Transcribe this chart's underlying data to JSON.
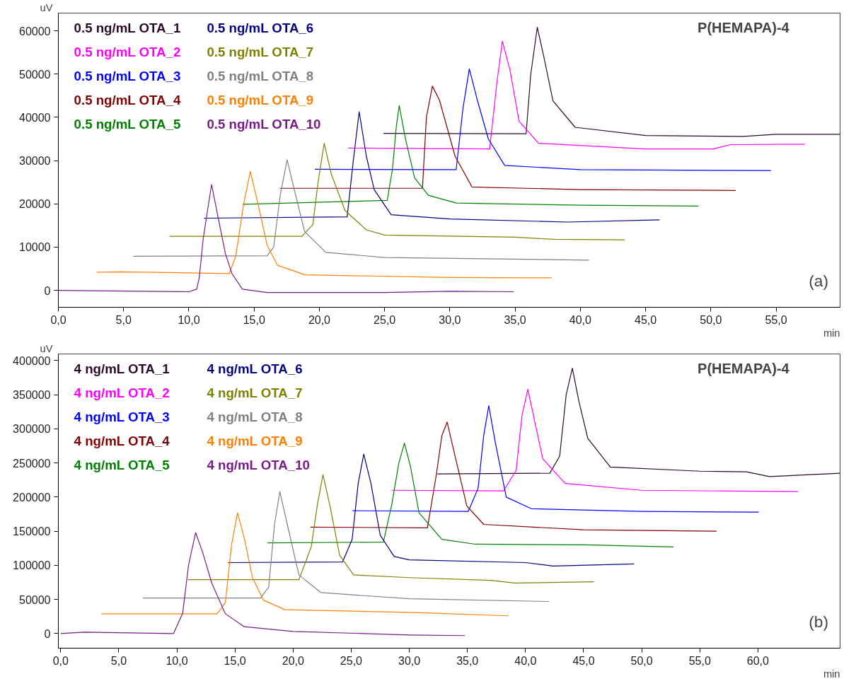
{
  "chart_data": [
    {
      "type": "line",
      "title": "P(HEMAPA)-4",
      "xlabel": "min",
      "ylabel": "uV",
      "annotations": [
        "(a)"
      ],
      "legend": "top left",
      "grid": false,
      "xlim": [
        0,
        59.9
      ],
      "ylim": [
        -3900,
        64100
      ],
      "xticks": [
        {
          "value": 0,
          "label": "0,0"
        },
        {
          "value": 5,
          "label": "5,0"
        },
        {
          "value": 10,
          "label": "10,0"
        },
        {
          "value": 15,
          "label": "15,0"
        },
        {
          "value": 20,
          "label": "20,0"
        },
        {
          "value": 25,
          "label": "25,0"
        },
        {
          "value": 30,
          "label": "30,0"
        },
        {
          "value": 35,
          "label": "35,0"
        },
        {
          "value": 40,
          "label": "40,0"
        },
        {
          "value": 45,
          "label": "45,0"
        },
        {
          "value": 50,
          "label": "50,0"
        },
        {
          "value": 55,
          "label": "55,0"
        }
      ],
      "yticks": [
        0,
        10000,
        20000,
        30000,
        40000,
        50000,
        60000
      ],
      "series": [
        {
          "name": "0.5 ng/mL OTA_1",
          "color": "#2a0a2a",
          "x": [
            24.91,
            35.84,
            36.2,
            36.7,
            37.2,
            37.9,
            39.6,
            45,
            52.5,
            55,
            59.9
          ],
          "values": [
            36300,
            36200,
            50000,
            60800,
            54000,
            43800,
            37700,
            35800,
            35600,
            36100,
            36100
          ]
        },
        {
          "name": "0.5 ng/mL OTA_2",
          "color": "#ff00ff",
          "x": [
            22.23,
            33.05,
            33.6,
            34.02,
            34.6,
            35.3,
            36.8,
            45,
            50.2,
            51.5,
            57.2
          ],
          "values": [
            32900,
            32700,
            48000,
            57600,
            51000,
            39100,
            34000,
            32700,
            32700,
            33700,
            33800
          ]
        },
        {
          "name": "0.5 ng/mL OTA_3",
          "color": "#0000ff",
          "x": [
            19.65,
            30.48,
            31.0,
            31.49,
            32.1,
            32.95,
            34.2,
            40,
            54.6
          ],
          "values": [
            28000,
            27900,
            42000,
            51200,
            44000,
            35000,
            28900,
            27900,
            27700
          ]
        },
        {
          "name": "0.5 ng/mL OTA_4",
          "color": "#800000",
          "x": [
            16.96,
            27.9,
            28.2,
            28.66,
            29.2,
            30.4,
            31.7,
            40,
            51.9
          ],
          "values": [
            23600,
            23600,
            40000,
            47200,
            44000,
            31000,
            23900,
            23300,
            23100
          ]
        },
        {
          "name": "0.5 ng/mL OTA_5",
          "color": "#008000",
          "x": [
            14.13,
            25.2,
            25.6,
            25.9,
            26.12,
            26.6,
            27.3,
            28.35,
            30.5,
            40,
            49.05
          ],
          "values": [
            19900,
            20800,
            28000,
            38000,
            42700,
            35000,
            26000,
            22000,
            20200,
            19700,
            19500
          ]
        },
        {
          "name": "0.5 ng/mL OTA_6",
          "color": "#000080",
          "x": [
            11.15,
            22.13,
            22.6,
            23.05,
            23.6,
            24.2,
            25.5,
            30,
            39,
            46.07
          ],
          "values": [
            16700,
            17000,
            30000,
            41300,
            31000,
            23300,
            17500,
            16500,
            15800,
            16300
          ]
        },
        {
          "name": "0.5 ng/mL OTA_7",
          "color": "#808000",
          "x": [
            8.51,
            18.66,
            19.5,
            19.9,
            20.37,
            20.9,
            21.96,
            23.6,
            25,
            35,
            38,
            43.4
          ],
          "values": [
            12500,
            12500,
            15200,
            25000,
            34000,
            27000,
            18500,
            14000,
            12800,
            12300,
            11800,
            11700
          ]
        },
        {
          "name": "0.5 ng/mL OTA_8",
          "color": "#808080",
          "x": [
            5.75,
            16.0,
            16.5,
            17.0,
            17.53,
            18.1,
            18.87,
            20.5,
            25,
            40.66
          ],
          "values": [
            7900,
            8000,
            10000,
            22000,
            30200,
            23000,
            13600,
            8800,
            7600,
            7000
          ]
        },
        {
          "name": "0.5 ng/mL OTA_9",
          "color": "#ff8000",
          "x": [
            2.93,
            5,
            13.1,
            13.6,
            14.2,
            14.71,
            15.3,
            16.0,
            16.8,
            18.9,
            30,
            37.8
          ],
          "values": [
            4200,
            4300,
            3900,
            8000,
            20000,
            27500,
            20000,
            10400,
            5800,
            3600,
            3000,
            2900
          ]
        },
        {
          "name": "0.5 ng/mL OTA_10",
          "color": "#7a1a8a",
          "x": [
            0,
            10.0,
            10.6,
            10.8,
            11.1,
            11.74,
            12.3,
            12.8,
            13.3,
            14.1,
            16,
            25,
            30,
            34.9
          ],
          "values": [
            0,
            -300,
            300,
            3000,
            12000,
            24500,
            16000,
            8500,
            3900,
            300,
            -500,
            -500,
            -200,
            -300
          ]
        }
      ]
    },
    {
      "type": "line",
      "title": "P(HEMAPA)-4",
      "xlabel": "min",
      "ylabel": "uV",
      "annotations": [
        "(b)"
      ],
      "legend": "top left",
      "grid": false,
      "xlim": [
        -0.2,
        67.07
      ],
      "ylim": [
        -21400,
        409800
      ],
      "xticks": [
        {
          "value": 0,
          "label": "0,0"
        },
        {
          "value": 5,
          "label": "5,0"
        },
        {
          "value": 10,
          "label": "10,0"
        },
        {
          "value": 15,
          "label": "15,0"
        },
        {
          "value": 20,
          "label": "20,0"
        },
        {
          "value": 25,
          "label": "25,0"
        },
        {
          "value": 30,
          "label": "30,0"
        },
        {
          "value": 35,
          "label": "35,0"
        },
        {
          "value": 40,
          "label": "40,0"
        },
        {
          "value": 45,
          "label": "45,0"
        },
        {
          "value": 50,
          "label": "50,0"
        },
        {
          "value": 55,
          "label": "55,0"
        },
        {
          "value": 60,
          "label": "60,0"
        }
      ],
      "yticks": [
        0,
        50000,
        100000,
        150000,
        200000,
        250000,
        300000,
        350000,
        400000
      ],
      "series": [
        {
          "name": "4 ng/mL OTA_1",
          "color": "#2a0a2a",
          "x": [
            32.41,
            42.09,
            42.94,
            43.5,
            44.03,
            44.6,
            45.36,
            47.3,
            55,
            59,
            61,
            67.07
          ],
          "values": [
            234000,
            235000,
            260000,
            350000,
            389000,
            340000,
            286000,
            244000,
            238000,
            237000,
            230000,
            235000
          ]
        },
        {
          "name": "4 ng/mL OTA_2",
          "color": "#ff00ff",
          "x": [
            28.48,
            38.1,
            39.19,
            39.7,
            40.2,
            40.8,
            41.49,
            43.42,
            50,
            63.44
          ],
          "values": [
            210000,
            209000,
            239000,
            320000,
            358000,
            310000,
            256000,
            220000,
            210000,
            208000
          ]
        },
        {
          "name": "4 ng/mL OTA_3",
          "color": "#0000ff",
          "x": [
            25.12,
            35.07,
            35.92,
            36.4,
            36.84,
            37.4,
            38.34,
            40.5,
            50,
            60.07
          ],
          "values": [
            180000,
            179000,
            213000,
            290000,
            334000,
            280000,
            200000,
            183000,
            179000,
            178000
          ]
        },
        {
          "name": "4 ng/mL OTA_4",
          "color": "#800000",
          "x": [
            21.5,
            31.56,
            32.3,
            32.8,
            33.26,
            33.8,
            34.95,
            36.4,
            45,
            56.44
          ],
          "values": [
            156000,
            155000,
            230000,
            290000,
            310000,
            270000,
            187000,
            160000,
            152000,
            150000
          ]
        },
        {
          "name": "4 ng/mL OTA_5",
          "color": "#008000",
          "x": [
            17.8,
            27.77,
            28.5,
            29.1,
            29.58,
            30.1,
            30.84,
            32.8,
            35.68,
            45,
            52.74
          ],
          "values": [
            133000,
            134000,
            190000,
            250000,
            279000,
            245000,
            177000,
            138000,
            131000,
            130000,
            127000
          ]
        },
        {
          "name": "4 ng/mL OTA_6",
          "color": "#000080",
          "x": [
            14.4,
            24.26,
            25.08,
            25.6,
            26.08,
            26.7,
            27.5,
            28.7,
            30,
            40,
            42.4,
            49.35
          ],
          "values": [
            104000,
            105000,
            138000,
            220000,
            263000,
            220000,
            144000,
            113000,
            108000,
            104000,
            99000,
            102000
          ]
        },
        {
          "name": "4 ng/mL OTA_7",
          "color": "#808000",
          "x": [
            10.93,
            20.5,
            21.56,
            22.1,
            22.57,
            23.2,
            24.0,
            25.2,
            30,
            37,
            39.07,
            45.9
          ],
          "values": [
            79000,
            79000,
            127000,
            190000,
            233000,
            185000,
            115000,
            86000,
            82000,
            78000,
            74000,
            76000
          ]
        },
        {
          "name": "4 ng/mL OTA_8",
          "color": "#808080",
          "x": [
            7.08,
            17.2,
            17.9,
            18.4,
            18.86,
            19.5,
            20.5,
            22.4,
            30,
            42.04
          ],
          "values": [
            52000,
            52000,
            68000,
            160000,
            208000,
            160000,
            86000,
            60000,
            51000,
            47000
          ]
        },
        {
          "name": "4 ng/mL OTA_9",
          "color": "#ff8000",
          "x": [
            3.5,
            13.46,
            14.17,
            14.7,
            15.22,
            15.8,
            16.5,
            17.45,
            19.3,
            30,
            38.5
          ],
          "values": [
            29000,
            29000,
            45000,
            130000,
            177000,
            140000,
            82000,
            49000,
            35000,
            31000,
            26000
          ]
        },
        {
          "name": "4 ng/mL OTA_10",
          "color": "#7a1a8a",
          "x": [
            0,
            2,
            9.71,
            10.5,
            11.0,
            11.61,
            12.2,
            13.0,
            14.17,
            15.8,
            20,
            30,
            34.8
          ],
          "values": [
            0,
            2000,
            0,
            30000,
            100000,
            148000,
            120000,
            74000,
            29000,
            10000,
            3000,
            -2000,
            -3000
          ]
        }
      ]
    }
  ]
}
